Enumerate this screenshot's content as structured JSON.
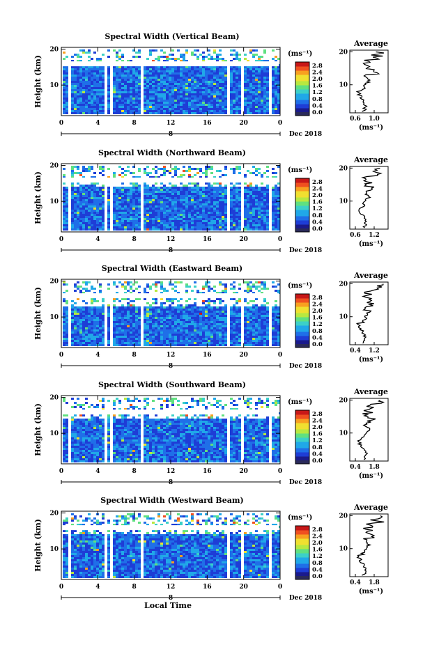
{
  "chart_data": [
    {
      "type": "heatmap",
      "title": "Spectral Width (Vertical Beam)",
      "beam": "vertical",
      "xlabel": "",
      "ylabel": "Height (km)",
      "x_ticks": [
        "0",
        "4",
        "8",
        "12",
        "16",
        "20",
        "0"
      ],
      "y_ticks": [
        "20",
        "10"
      ],
      "day_marker": "8",
      "date_label": "Dec 2018",
      "colorbar": {
        "unit": "(ms⁻¹)",
        "ticks": [
          "0.0",
          "0.4",
          "0.8",
          "1.2",
          "1.6",
          "2.0",
          "2.4",
          "2.8"
        ]
      },
      "average": {
        "title": "Average",
        "xlabel": "(ms⁻¹)",
        "x_ticks": [
          "0.6",
          "1.0"
        ],
        "y_ticks": [
          "20",
          "10"
        ]
      }
    },
    {
      "type": "heatmap",
      "title": "Spectral Width (Northward Beam)",
      "beam": "northward",
      "xlabel": "",
      "ylabel": "Height (km)",
      "x_ticks": [
        "0",
        "4",
        "8",
        "12",
        "16",
        "20",
        "0"
      ],
      "y_ticks": [
        "20",
        "10"
      ],
      "day_marker": "8",
      "date_label": "Dec 2018",
      "colorbar": {
        "unit": "(ms⁻¹)",
        "ticks": [
          "0.0",
          "0.4",
          "0.8",
          "1.2",
          "1.6",
          "2.0",
          "2.4",
          "2.8"
        ]
      },
      "average": {
        "title": "Average",
        "xlabel": "(ms⁻¹)",
        "x_ticks": [
          "0.6",
          "1.2"
        ],
        "y_ticks": [
          "20",
          "10"
        ]
      }
    },
    {
      "type": "heatmap",
      "title": "Spectral Width (Eastward Beam)",
      "beam": "eastward",
      "xlabel": "",
      "ylabel": "Height (km)",
      "x_ticks": [
        "0",
        "4",
        "8",
        "12",
        "16",
        "20",
        "0"
      ],
      "y_ticks": [
        "20",
        "10"
      ],
      "day_marker": "8",
      "date_label": "Dec 2018",
      "colorbar": {
        "unit": "(ms⁻¹)",
        "ticks": [
          "0.0",
          "0.4",
          "0.8",
          "1.2",
          "1.6",
          "2.0",
          "2.4",
          "2.8"
        ]
      },
      "average": {
        "title": "Average",
        "xlabel": "(ms⁻¹)",
        "x_ticks": [
          "0.4",
          "1.2"
        ],
        "y_ticks": [
          "20",
          "10"
        ]
      }
    },
    {
      "type": "heatmap",
      "title": "Spectral Width (Southward Beam)",
      "beam": "southward",
      "xlabel": "",
      "ylabel": "Height (km)",
      "x_ticks": [
        "0",
        "4",
        "8",
        "12",
        "16",
        "20",
        "0"
      ],
      "y_ticks": [
        "20",
        "10"
      ],
      "day_marker": "8",
      "date_label": "Dec 2018",
      "colorbar": {
        "unit": "(ms⁻¹)",
        "ticks": [
          "0.0",
          "0.4",
          "0.8",
          "1.2",
          "1.6",
          "2.0",
          "2.4",
          "2.8"
        ]
      },
      "average": {
        "title": "Average",
        "xlabel": "(ms⁻¹)",
        "x_ticks": [
          "0.4",
          "1.8"
        ],
        "y_ticks": [
          "20",
          "10"
        ]
      }
    },
    {
      "type": "heatmap",
      "title": "Spectral Width (Westward Beam)",
      "beam": "westward",
      "xlabel": "Local Time",
      "ylabel": "Height (km)",
      "x_ticks": [
        "0",
        "4",
        "8",
        "12",
        "16",
        "20",
        "0"
      ],
      "y_ticks": [
        "20",
        "10"
      ],
      "day_marker": "8",
      "date_label": "Dec 2018",
      "colorbar": {
        "unit": "(ms⁻¹)",
        "ticks": [
          "0.0",
          "0.4",
          "0.8",
          "1.2",
          "1.6",
          "2.0",
          "2.4",
          "2.8"
        ]
      },
      "average": {
        "title": "Average",
        "xlabel": "(ms⁻¹)",
        "x_ticks": [
          "0.4",
          "1.8"
        ],
        "y_ticks": [
          "20",
          "10"
        ]
      }
    }
  ],
  "x_range_hours": [
    0,
    24
  ],
  "y_range_km": [
    1.5,
    20.5
  ],
  "colorbar_range": [
    0,
    3.0
  ],
  "data_gaps_hours": [
    [
      0.7,
      1.0
    ],
    [
      4.7,
      5.0
    ],
    [
      5.3,
      5.6
    ],
    [
      8.5,
      8.9
    ],
    [
      17.9,
      18.3
    ],
    [
      19.6,
      20.0
    ],
    [
      22.6,
      23.0
    ]
  ],
  "colors": {
    "colormap": [
      "#1a1a8c",
      "#1e3dd6",
      "#1f6fe8",
      "#20a8e8",
      "#3cd0c8",
      "#60e080",
      "#b8e840",
      "#f0e030",
      "#f8a020",
      "#f05020",
      "#c81818"
    ],
    "colorbar_bottom_swatch": "#2a2a5a",
    "text": "#000000"
  }
}
